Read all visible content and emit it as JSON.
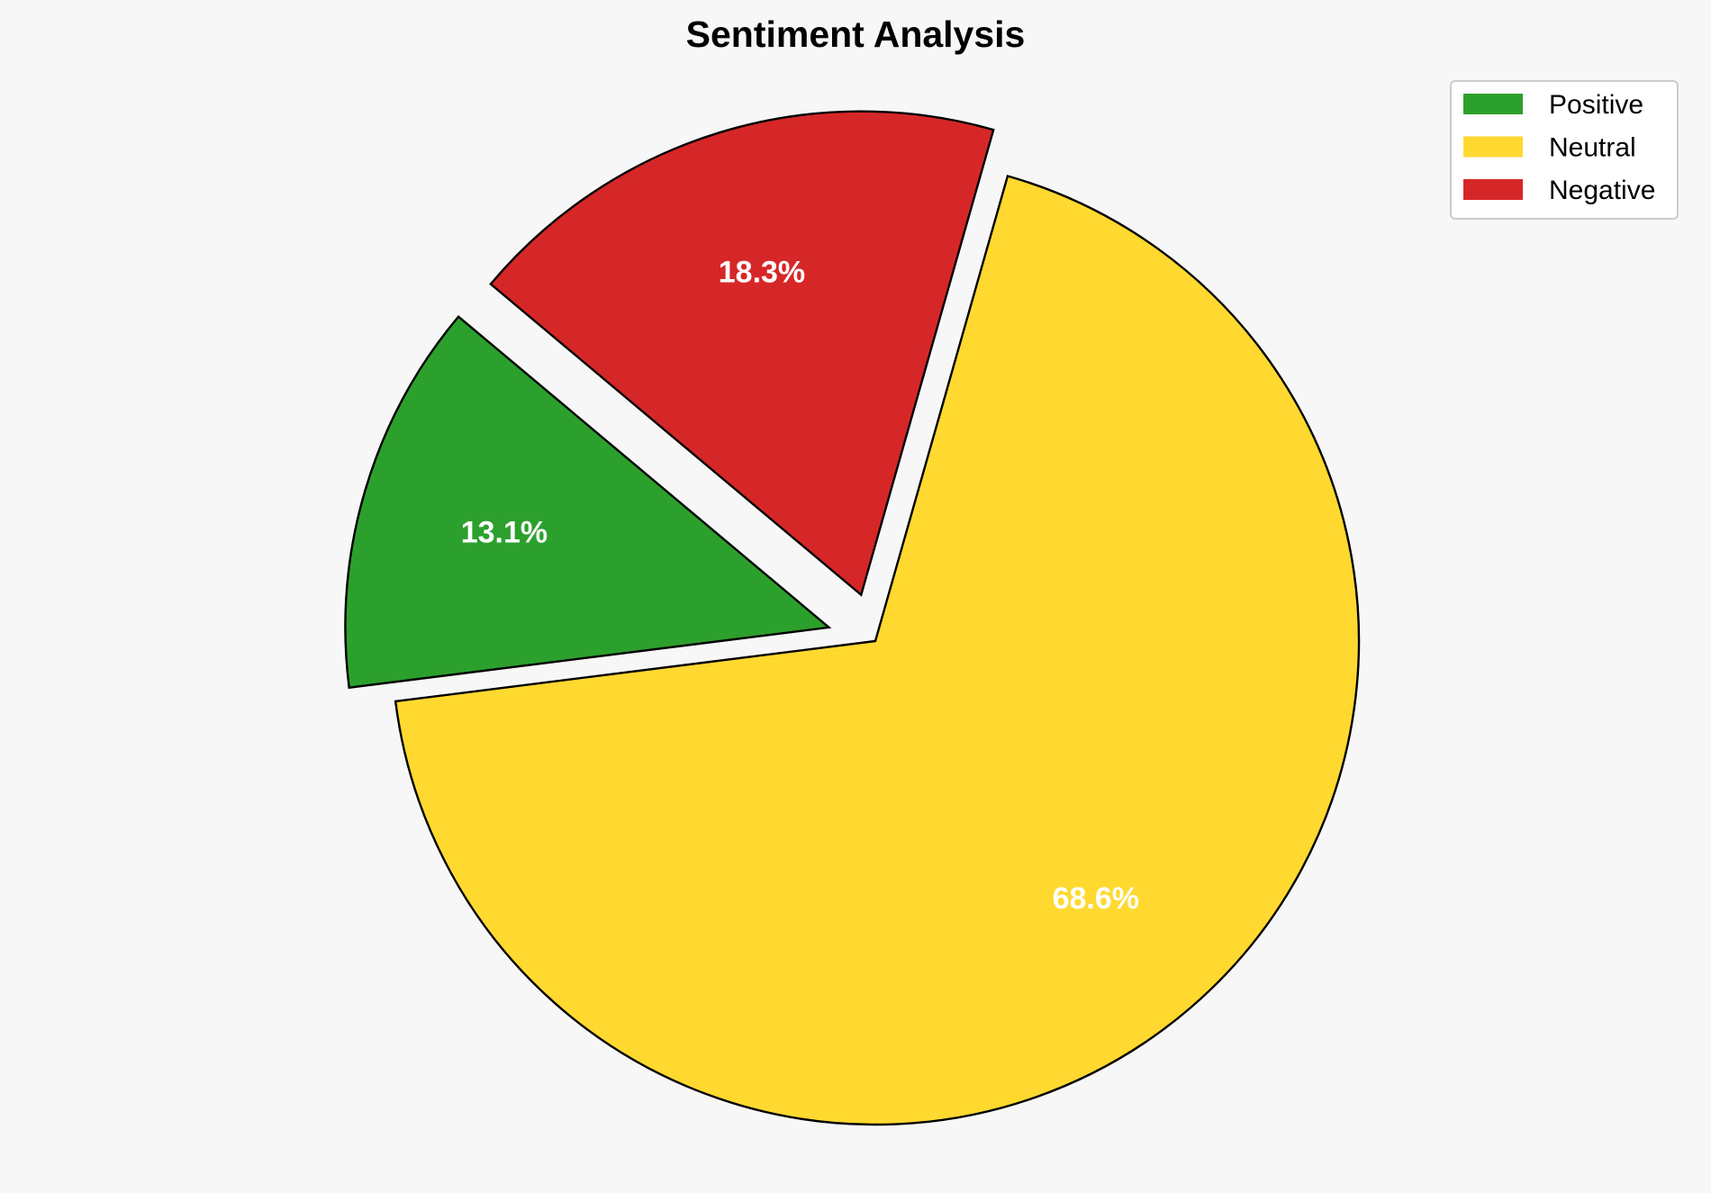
{
  "chart_data": {
    "type": "pie",
    "title": "Sentiment Analysis",
    "categories": [
      "Positive",
      "Neutral",
      "Negative"
    ],
    "values": [
      13.1,
      68.6,
      18.3
    ],
    "labels": [
      "13.1%",
      "68.6%",
      "18.3%"
    ],
    "colors": [
      "#2ca02c",
      "#ffd92f",
      "#d62728"
    ],
    "exploded": [
      true,
      false,
      true
    ],
    "start_angle_deg": 140,
    "direction": "counterclockwise",
    "legend": {
      "placement": "top-right",
      "entries": [
        "Positive",
        "Neutral",
        "Negative"
      ]
    },
    "edge_color": "#000000",
    "label_color": "#ffffff",
    "background": "#f7f7f7"
  }
}
